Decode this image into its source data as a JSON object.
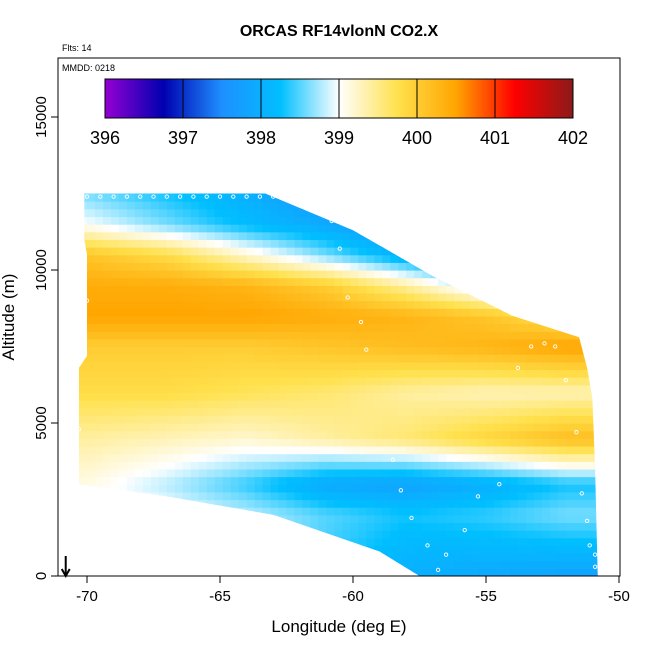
{
  "chart_data": {
    "type": "heatmap",
    "title": "ORCAS RF14vlonN CO2.X",
    "notes": [
      "Flts: 14",
      "MMDD: 0218"
    ],
    "xlabel": "Longitude (deg E)",
    "ylabel": "Altitude (m)",
    "xlim": [
      -71,
      -50
    ],
    "ylim": [
      0,
      16500
    ],
    "x_ticks": [
      -70,
      -65,
      -60,
      -55,
      -50
    ],
    "y_ticks": [
      0,
      5000,
      10000,
      15000
    ],
    "colorbar": {
      "ticks": [
        396,
        397,
        398,
        399,
        400,
        401,
        402
      ],
      "range": [
        396,
        402
      ],
      "colors": [
        "#9400d3",
        "#0000b0",
        "#1e90ff",
        "#00bfff",
        "#ffffff",
        "#ffe14d",
        "#ffa500",
        "#ff0000",
        "#8b1a1a"
      ]
    },
    "grid_x": [
      -70,
      -67,
      -64,
      -61,
      -58,
      -55,
      -52
    ],
    "grid_z": [
      0,
      2000,
      3000,
      4500,
      6000,
      7500,
      8500,
      9500,
      10500,
      11500,
      12500
    ],
    "values": [
      [
        399.2,
        399.0,
        398.8,
        398.4,
        398.0,
        397.9,
        397.8
      ],
      [
        399.2,
        399.0,
        398.8,
        398.5,
        398.3,
        398.4,
        398.6
      ],
      [
        399.1,
        398.8,
        398.4,
        397.9,
        397.8,
        398.0,
        398.3
      ],
      [
        399.4,
        399.3,
        399.2,
        399.4,
        399.6,
        399.9,
        400.2
      ],
      [
        399.8,
        399.8,
        399.7,
        399.6,
        399.4,
        399.3,
        399.3
      ],
      [
        400.0,
        400.0,
        400.0,
        400.1,
        400.2,
        400.3,
        400.5
      ],
      [
        400.5,
        400.5,
        400.5,
        400.4,
        400.3,
        400.1,
        399.7
      ],
      [
        400.4,
        400.4,
        400.3,
        400.0,
        399.4,
        398.7,
        398.2
      ],
      [
        400.1,
        399.8,
        399.2,
        398.6,
        398.0,
        397.6,
        397.4
      ],
      [
        399.0,
        398.6,
        398.2,
        397.9,
        397.6,
        397.3,
        397.0
      ],
      [
        398.6,
        398.3,
        398.0,
        397.6,
        397.0,
        396.9,
        396.9
      ]
    ],
    "domain_outline": [
      [
        -70.1,
        12500
      ],
      [
        -63.3,
        12500
      ],
      [
        -60.0,
        11300
      ],
      [
        -57.0,
        9800
      ],
      [
        -54.0,
        8500
      ],
      [
        -51.5,
        7800
      ],
      [
        -51.2,
        6800
      ],
      [
        -51.0,
        5800
      ],
      [
        -50.9,
        3500
      ],
      [
        -50.8,
        0
      ],
      [
        -57.5,
        0
      ],
      [
        -59.0,
        800
      ],
      [
        -63.0,
        2000
      ],
      [
        -67.0,
        2600
      ],
      [
        -70.3,
        3000
      ],
      [
        -70.3,
        6800
      ],
      [
        -70.0,
        7200
      ],
      [
        -70.0,
        10500
      ],
      [
        -70.1,
        11000
      ]
    ],
    "flight_points": [
      [
        -70.0,
        12400
      ],
      [
        -69.5,
        12400
      ],
      [
        -69.0,
        12400
      ],
      [
        -68.5,
        12400
      ],
      [
        -68.0,
        12400
      ],
      [
        -67.5,
        12400
      ],
      [
        -67.0,
        12400
      ],
      [
        -66.5,
        12400
      ],
      [
        -66.0,
        12400
      ],
      [
        -65.5,
        12400
      ],
      [
        -65.0,
        12400
      ],
      [
        -64.5,
        12400
      ],
      [
        -64.0,
        12400
      ],
      [
        -63.5,
        12400
      ],
      [
        -63.0,
        12400
      ],
      [
        -62.0,
        12300
      ],
      [
        -61.5,
        12300
      ],
      [
        -61.0,
        12300
      ],
      [
        -61.0,
        12000
      ],
      [
        -60.8,
        11600
      ],
      [
        -60.5,
        10700
      ],
      [
        -60.2,
        9100
      ],
      [
        -59.7,
        8300
      ],
      [
        -59.5,
        7400
      ],
      [
        -58.5,
        3800
      ],
      [
        -58.2,
        2800
      ],
      [
        -57.8,
        1900
      ],
      [
        -57.2,
        1000
      ],
      [
        -56.8,
        200
      ],
      [
        -56.5,
        700
      ],
      [
        -55.8,
        1500
      ],
      [
        -55.3,
        2600
      ],
      [
        -54.5,
        3000
      ],
      [
        -53.8,
        6800
      ],
      [
        -53.3,
        7500
      ],
      [
        -52.8,
        7600
      ],
      [
        -52.4,
        7500
      ],
      [
        -52.0,
        6400
      ],
      [
        -51.6,
        4700
      ],
      [
        -51.4,
        2700
      ],
      [
        -51.2,
        1800
      ],
      [
        -51.1,
        1000
      ],
      [
        -50.9,
        700
      ],
      [
        -50.9,
        300
      ],
      [
        -70.0,
        9000
      ],
      [
        -70.3,
        4800
      ]
    ],
    "arrow_x": -70.8
  }
}
